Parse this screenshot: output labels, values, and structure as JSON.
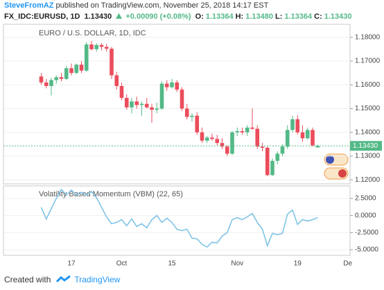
{
  "header": {
    "author": "SteveFromAZ",
    "published": "published on TradingView.com, November 25, 2018 14:17 EST",
    "symbol": "FX_IDC:EURUSD, 1D",
    "last": "1.13430",
    "change": "+0.00090 (+0.08%)",
    "ohlc": [
      {
        "label": "O:",
        "value": "1.13364"
      },
      {
        "label": "H:",
        "value": "1.13480"
      },
      {
        "label": "L:",
        "value": "1.13364"
      },
      {
        "label": "C:",
        "value": "1.13430"
      }
    ]
  },
  "footer": {
    "created": "Created with",
    "brand": "TradingView"
  },
  "chart_data": [
    {
      "type": "candlestick",
      "title": "EURO / U.S. DOLLAR, 1D, IDC",
      "categories": [
        null,
        null,
        null,
        null,
        null,
        null,
        "17",
        null,
        null,
        null,
        null,
        null,
        null,
        null,
        null,
        null,
        "Oct",
        null,
        null,
        null,
        null,
        null,
        null,
        null,
        null,
        null,
        "15",
        null,
        null,
        null,
        null,
        null,
        null,
        null,
        null,
        null,
        null,
        null,
        null,
        "Nov",
        null,
        null,
        null,
        null,
        null,
        null,
        null,
        null,
        null,
        null,
        null,
        "19",
        null,
        null,
        null,
        null,
        null,
        null,
        null,
        null,
        null,
        "De"
      ],
      "open": [
        1.1635,
        1.161,
        1.1595,
        1.162,
        1.1632,
        1.1625,
        1.167,
        1.165,
        1.1685,
        1.166,
        1.177,
        1.175,
        1.1768,
        1.176,
        1.1752,
        1.164,
        1.1595,
        1.1545,
        1.1505,
        1.153,
        1.1515,
        1.152,
        1.1505,
        1.1495,
        1.15,
        1.1605,
        1.159,
        1.161,
        1.158,
        1.15,
        1.1465,
        1.147,
        1.14,
        1.1365,
        1.1378,
        1.1372,
        1.1355,
        1.134,
        1.131,
        1.14,
        1.1405,
        1.14,
        1.142,
        1.1415,
        1.134,
        1.1335,
        1.122,
        1.128,
        1.131,
        1.134,
        1.141,
        1.1455,
        1.14,
        1.1375,
        1.141,
        1.13364,
        null,
        null,
        null,
        null,
        null,
        null
      ],
      "high": [
        1.165,
        1.1625,
        1.163,
        1.164,
        1.165,
        1.168,
        1.169,
        1.169,
        1.17,
        1.178,
        1.1785,
        1.1775,
        1.1775,
        1.1772,
        1.176,
        1.1655,
        1.161,
        1.156,
        1.1545,
        1.155,
        1.153,
        1.1545,
        1.152,
        1.1525,
        1.1615,
        1.162,
        1.1625,
        1.162,
        1.159,
        1.152,
        1.148,
        1.1485,
        1.142,
        1.1385,
        1.1395,
        1.139,
        1.1375,
        1.1345,
        1.1405,
        1.142,
        1.142,
        1.143,
        1.15,
        1.143,
        1.1355,
        1.134,
        1.129,
        1.132,
        1.135,
        1.143,
        1.147,
        1.1472,
        1.143,
        1.142,
        1.142,
        1.1348,
        null,
        null,
        null,
        null,
        null,
        null
      ],
      "low": [
        1.16,
        1.1585,
        1.1555,
        1.1605,
        1.1615,
        1.162,
        1.164,
        1.1645,
        1.165,
        1.1655,
        1.1745,
        1.174,
        1.1745,
        1.174,
        1.1625,
        1.158,
        1.1535,
        1.1495,
        1.148,
        1.15,
        1.147,
        1.15,
        1.144,
        1.148,
        1.1495,
        1.1575,
        1.1585,
        1.157,
        1.149,
        1.1455,
        1.1445,
        1.139,
        1.1355,
        1.1355,
        1.1365,
        1.1345,
        1.133,
        1.13,
        1.1305,
        1.1385,
        1.139,
        1.1385,
        1.141,
        1.133,
        1.132,
        1.1215,
        1.1215,
        1.1265,
        1.13,
        1.133,
        1.14,
        1.139,
        1.136,
        1.137,
        1.134,
        1.13364,
        null,
        null,
        null,
        null,
        null,
        null
      ],
      "close": [
        1.161,
        1.1595,
        1.162,
        1.1632,
        1.1625,
        1.167,
        1.165,
        1.1685,
        1.166,
        1.177,
        1.175,
        1.1768,
        1.176,
        1.1752,
        1.164,
        1.1595,
        1.1545,
        1.1505,
        1.153,
        1.1515,
        1.152,
        1.1505,
        1.1495,
        1.15,
        1.1605,
        1.159,
        1.161,
        1.158,
        1.15,
        1.1465,
        1.147,
        1.14,
        1.1365,
        1.1378,
        1.1372,
        1.1355,
        1.134,
        1.131,
        1.14,
        1.1405,
        1.14,
        1.142,
        1.1415,
        1.134,
        1.1335,
        1.122,
        1.128,
        1.131,
        1.134,
        1.141,
        1.1455,
        1.14,
        1.1375,
        1.141,
        1.1345,
        1.1343,
        null,
        null,
        null,
        null,
        null,
        null
      ],
      "up_color": "#53b987",
      "down_color": "#eb4d5c",
      "ylim": [
        1.1183,
        1.1855
      ],
      "yticks": [
        {
          "value": 1.12,
          "label": "1.12000"
        },
        {
          "value": 1.13,
          "label": "1.13000"
        },
        {
          "value": 1.14,
          "label": "1.14000"
        },
        {
          "value": 1.15,
          "label": "1.15000"
        },
        {
          "value": 1.16,
          "label": "1.16000"
        },
        {
          "value": 1.17,
          "label": "1.17000"
        },
        {
          "value": 1.18,
          "label": "1.18000"
        }
      ],
      "price_line": {
        "value": 1.1343,
        "label": "1.13430",
        "color": "#53b987"
      },
      "grid": true
    },
    {
      "type": "line",
      "title": "Volatility Based Momentum (VBM) (22, 65)",
      "color": "#7fc4e6",
      "values": [
        1.2,
        -0.5,
        1.0,
        2.5,
        3.8,
        3.0,
        3.7,
        3.0,
        3.4,
        3.0,
        3.5,
        2.6,
        1.2,
        -0.2,
        -1.2,
        -1.0,
        -0.6,
        -1.5,
        -0.5,
        -1.6,
        -1.2,
        -1.8,
        -0.6,
        0.0,
        -1.0,
        -0.4,
        -1.0,
        -2.0,
        -2.2,
        -2.0,
        -3.3,
        -3.4,
        -4.2,
        -4.6,
        -3.9,
        -4.0,
        -3.0,
        -2.5,
        -0.6,
        -0.3,
        -0.6,
        -0.2,
        0.3,
        -1.0,
        -2.0,
        -4.4,
        -2.6,
        -2.8,
        -2.6,
        0.2,
        0.8,
        -1.3,
        -0.6,
        -0.8,
        -0.6,
        -0.3,
        null,
        null,
        null,
        null,
        null,
        null
      ],
      "ylim": [
        -5.81,
        4.32
      ],
      "yticks": [
        {
          "value": -5,
          "label": "-5.0000"
        },
        {
          "value": -2.5,
          "label": "-2.5000"
        },
        {
          "value": 0,
          "label": "0.0000"
        },
        {
          "value": 2.5,
          "label": "2.5000"
        }
      ],
      "grid": true
    }
  ]
}
